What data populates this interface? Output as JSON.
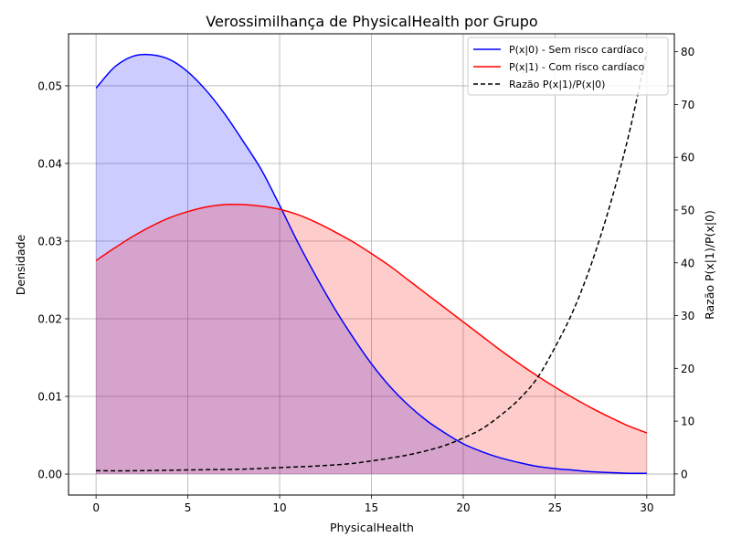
{
  "chart_data": {
    "type": "line",
    "title": "Verossimilhança de PhysicalHealth por Grupo",
    "xlabel": "PhysicalHealth",
    "ylabel": "Densidade",
    "y2label": "Razão P(x|1)/P(x|0)",
    "xlim": [
      -1.5,
      31.5
    ],
    "ylim": [
      -0.0027,
      0.0567
    ],
    "y2lim": [
      -4.0,
      83.4
    ],
    "xticks": [
      "0",
      "5",
      "10",
      "15",
      "20",
      "25",
      "30"
    ],
    "yticks": [
      "0.00",
      "0.01",
      "0.02",
      "0.03",
      "0.04",
      "0.05"
    ],
    "y2ticks": [
      "0",
      "10",
      "20",
      "30",
      "40",
      "50",
      "60",
      "70",
      "80"
    ],
    "grid": true,
    "legend_position": "top-right",
    "series": [
      {
        "name": "P(x|0) - Sem risco cardíaco",
        "color": "#0000ff",
        "fill": "#0000ff",
        "axis": "left",
        "style": "solid",
        "x": [
          0,
          1,
          2,
          3,
          4,
          5,
          6,
          7,
          8,
          9,
          10,
          11,
          12,
          13,
          14,
          15,
          16,
          17,
          18,
          19,
          20,
          21,
          22,
          23,
          24,
          25,
          26,
          27,
          28,
          29,
          30
        ],
        "values": [
          0.0497,
          0.0524,
          0.0538,
          0.054,
          0.0534,
          0.0518,
          0.0494,
          0.0464,
          0.0429,
          0.0392,
          0.0346,
          0.0298,
          0.0254,
          0.0213,
          0.0176,
          0.0142,
          0.0113,
          0.0089,
          0.0069,
          0.0053,
          0.0039,
          0.0029,
          0.0021,
          0.0015,
          0.001,
          0.0007,
          0.0005,
          0.0003,
          0.0002,
          0.0001,
          0.0001
        ]
      },
      {
        "name": "P(x|1) - Com risco cardíaco",
        "color": "#ff0000",
        "fill": "#ff0000",
        "axis": "left",
        "style": "solid",
        "x": [
          0,
          1,
          2,
          3,
          4,
          5,
          6,
          7,
          8,
          9,
          10,
          11,
          12,
          13,
          14,
          15,
          16,
          17,
          18,
          19,
          20,
          21,
          22,
          23,
          24,
          25,
          26,
          27,
          28,
          29,
          30
        ],
        "values": [
          0.0275,
          0.0291,
          0.0306,
          0.0319,
          0.033,
          0.0338,
          0.0344,
          0.0347,
          0.0347,
          0.0345,
          0.0341,
          0.0334,
          0.0324,
          0.0312,
          0.0299,
          0.0284,
          0.0268,
          0.025,
          0.0232,
          0.0214,
          0.0196,
          0.0178,
          0.016,
          0.0143,
          0.0127,
          0.0112,
          0.0098,
          0.0085,
          0.0073,
          0.0062,
          0.0053
        ]
      },
      {
        "name": "Razão P(x|1)/P(x|0)",
        "color": "#000000",
        "axis": "right",
        "style": "dashed",
        "x": [
          0,
          2,
          4,
          6,
          8,
          10,
          12,
          14,
          16,
          17,
          18,
          19,
          20,
          21,
          22,
          23,
          24,
          25,
          26,
          27,
          28,
          29,
          30
        ],
        "values": [
          0.6,
          0.6,
          0.7,
          0.8,
          0.9,
          1.2,
          1.5,
          2.0,
          3.0,
          3.6,
          4.4,
          5.4,
          6.8,
          8.5,
          11,
          14,
          18,
          24,
          31,
          40,
          51,
          64,
          80
        ]
      }
    ]
  }
}
